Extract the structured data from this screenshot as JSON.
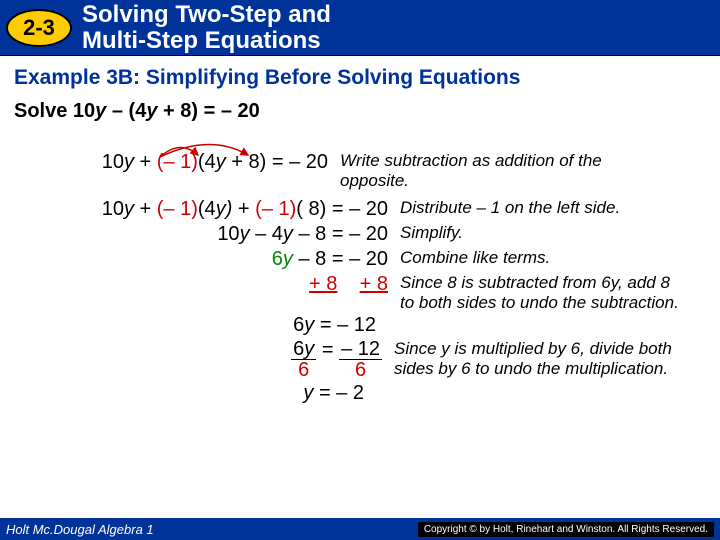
{
  "header": {
    "badge": "2-3",
    "title_line1": "Solving Two-Step and",
    "title_line2": "Multi-Step Equations"
  },
  "example_title": "Example 3B: Simplifying Before Solving Equations",
  "problem_prefix": "Solve 10",
  "problem_var1": "y",
  "problem_mid": " – (4",
  "problem_var2": "y",
  "problem_suffix": " + 8) = – 20",
  "steps": [
    {
      "math_segments": [
        {
          "text": "10",
          "cls": "black"
        },
        {
          "text": "y",
          "cls": "black",
          "italic": true
        },
        {
          "text": " + ",
          "cls": "black"
        },
        {
          "text": "(– 1)",
          "cls": "red"
        },
        {
          "text": "(4",
          "cls": "black"
        },
        {
          "text": "y",
          "cls": "black",
          "italic": true
        },
        {
          "text": " + 8) = – 20",
          "cls": "black"
        }
      ],
      "explain": "Write subtraction as addition of the opposite.",
      "math_width": 320,
      "has_arrows": true
    },
    {
      "math_segments": [
        {
          "text": "10",
          "cls": "black"
        },
        {
          "text": "y",
          "cls": "black",
          "italic": true
        },
        {
          "text": " + ",
          "cls": "black"
        },
        {
          "text": "(– 1)",
          "cls": "red"
        },
        {
          "text": "(4",
          "cls": "black"
        },
        {
          "text": "y)",
          "cls": "black",
          "italic": true
        },
        {
          "text": " + ",
          "cls": "black"
        },
        {
          "text": "(– 1)",
          "cls": "red"
        },
        {
          "text": "( 8) = – 20",
          "cls": "black"
        }
      ],
      "explain": "Distribute – 1 on the left side.",
      "math_width": 380
    },
    {
      "math_segments": [
        {
          "text": "10",
          "cls": "black"
        },
        {
          "text": "y",
          "cls": "black",
          "italic": true
        },
        {
          "text": " – 4",
          "cls": "black"
        },
        {
          "text": "y",
          "cls": "black",
          "italic": true
        },
        {
          "text": " – 8 = – 20",
          "cls": "black"
        }
      ],
      "explain": "Simplify.",
      "math_width": 380
    },
    {
      "math_segments": [
        {
          "text": "6",
          "cls": "green"
        },
        {
          "text": "y",
          "cls": "green",
          "italic": true
        },
        {
          "text": " – 8 = – 20",
          "cls": "black"
        }
      ],
      "explain": "Combine like terms.",
      "math_width": 380
    },
    {
      "math_segments": [
        {
          "text": "+ 8",
          "cls": "red",
          "underline": true
        },
        {
          "text": "    ",
          "cls": "black"
        },
        {
          "text": "+ 8",
          "cls": "red",
          "underline": true
        }
      ],
      "explain": "Since 8 is subtracted from 6y, add 8 to both sides to undo the subtraction.",
      "math_width": 380,
      "explain_rows": 3
    },
    {
      "math_segments": [
        {
          "text": "6",
          "cls": "black"
        },
        {
          "text": "y",
          "cls": "black",
          "italic": true
        },
        {
          "text": " = – 12",
          "cls": "black"
        }
      ],
      "explain": "",
      "math_width": 368
    },
    {
      "is_fraction_row": true,
      "left_top": "6y",
      "left_bot": "6",
      "right_top": "– 12",
      "right_bot": "6",
      "explain": "Since y is multiplied by 6, divide both sides by 6 to undo the multiplication.",
      "math_width": 374
    },
    {
      "math_segments": [
        {
          "text": "y",
          "cls": "black",
          "italic": true
        },
        {
          "text": " = – 2",
          "cls": "black"
        }
      ],
      "explain": "",
      "math_width": 356
    }
  ],
  "footer": {
    "left": "Holt Mc.Dougal Algebra 1",
    "right": "Copyright © by Holt, Rinehart and Winston. All Rights Reserved."
  },
  "colors": {
    "header_bg": "#003399",
    "badge_bg": "#ffcc00",
    "red": "#cc0000",
    "green": "#008800"
  }
}
